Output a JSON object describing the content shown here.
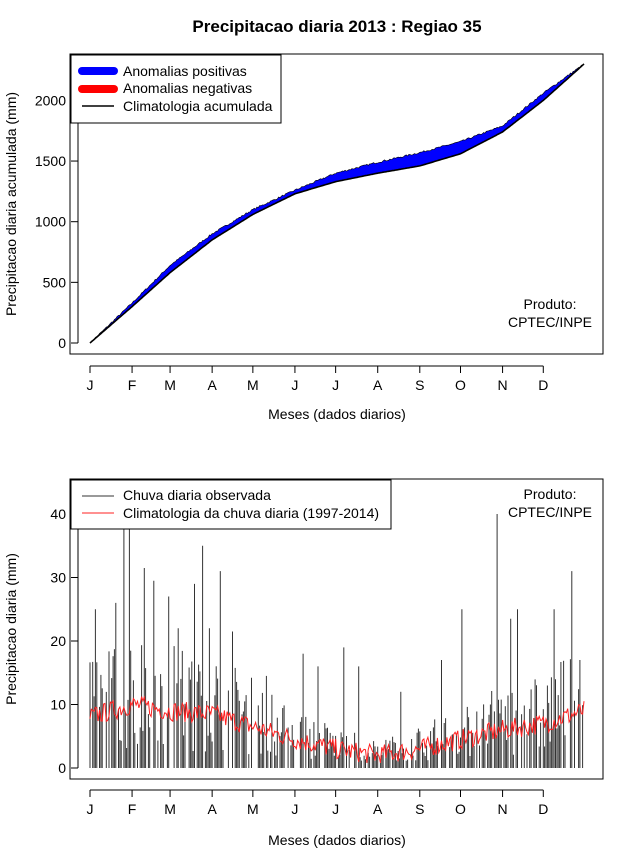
{
  "title": "Precipitacao diaria 2013 : Regiao 35",
  "colors": {
    "positive": "#0000ff",
    "negative": "#ff0000",
    "observed": "#333333",
    "climatology_daily": "#ff2020",
    "axis": "#000000"
  },
  "chart_data": [
    {
      "type": "area",
      "ylabel": "Precipitacao diaria acumulada (mm)",
      "xlabel": "Meses (dados diarios)",
      "xlim": [
        1,
        365
      ],
      "ylim": [
        0,
        2300
      ],
      "yticks": [
        0,
        500,
        1000,
        1500,
        2000
      ],
      "month_labels": [
        "J",
        "F",
        "M",
        "A",
        "M",
        "J",
        "J",
        "A",
        "S",
        "O",
        "N",
        "D"
      ],
      "month_days": [
        1,
        32,
        60,
        91,
        121,
        152,
        182,
        213,
        244,
        274,
        305,
        335
      ],
      "legend": [
        "Anomalias positivas",
        "Anomalias negativas",
        "Climatologia acumulada"
      ],
      "credit": [
        "Produto:",
        "CPTEC/INPE"
      ],
      "climatology_cumulative": {
        "day": [
          1,
          32,
          60,
          91,
          121,
          152,
          182,
          213,
          244,
          274,
          305,
          335,
          365
        ],
        "value": [
          0,
          300,
          580,
          850,
          1060,
          1230,
          1330,
          1400,
          1460,
          1560,
          1740,
          2000,
          2300
        ]
      },
      "observed_cumulative": {
        "day": [
          1,
          32,
          60,
          91,
          121,
          152,
          182,
          213,
          244,
          274,
          305,
          335,
          365
        ],
        "value": [
          0,
          330,
          640,
          900,
          1100,
          1260,
          1400,
          1490,
          1570,
          1660,
          1790,
          2060,
          2300
        ]
      }
    },
    {
      "type": "bar+line",
      "ylabel": "Precipitacao diaria (mm)",
      "xlabel": "Meses (dados diarios)",
      "xlim": [
        1,
        365
      ],
      "ylim": [
        0,
        40
      ],
      "yticks": [
        0,
        10,
        20,
        30,
        40
      ],
      "month_labels": [
        "J",
        "F",
        "M",
        "A",
        "M",
        "J",
        "J",
        "A",
        "S",
        "O",
        "N",
        "D"
      ],
      "month_days": [
        1,
        32,
        60,
        91,
        121,
        152,
        182,
        213,
        244,
        274,
        305,
        335
      ],
      "legend": [
        "Chuva diaria observada",
        "Climatologia da chuva diaria (1997-2014)"
      ],
      "credit": [
        "Produto:",
        "CPTEC/INPE"
      ],
      "climatology_daily_mean": {
        "day": [
          1,
          32,
          60,
          91,
          121,
          152,
          182,
          213,
          244,
          274,
          305,
          335,
          365
        ],
        "value": [
          8,
          10,
          9,
          8.5,
          6.5,
          4.5,
          3,
          2,
          3,
          4.5,
          6,
          7,
          9
        ]
      },
      "observed_daily_peaks": {
        "day": [
          5,
          20,
          26,
          30,
          41,
          48,
          59,
          66,
          78,
          84,
          89,
          97,
          106,
          131,
          158,
          169,
          188,
          199,
          230,
          260,
          275,
          301,
          311,
          316,
          343,
          356,
          362
        ],
        "value": [
          25,
          26,
          45,
          45,
          31.5,
          29.5,
          27,
          22,
          29,
          35,
          22,
          31,
          21.5,
          14.5,
          18,
          16,
          19,
          16,
          12,
          17,
          25,
          40,
          23.5,
          25,
          25,
          31,
          17
        ]
      }
    }
  ]
}
